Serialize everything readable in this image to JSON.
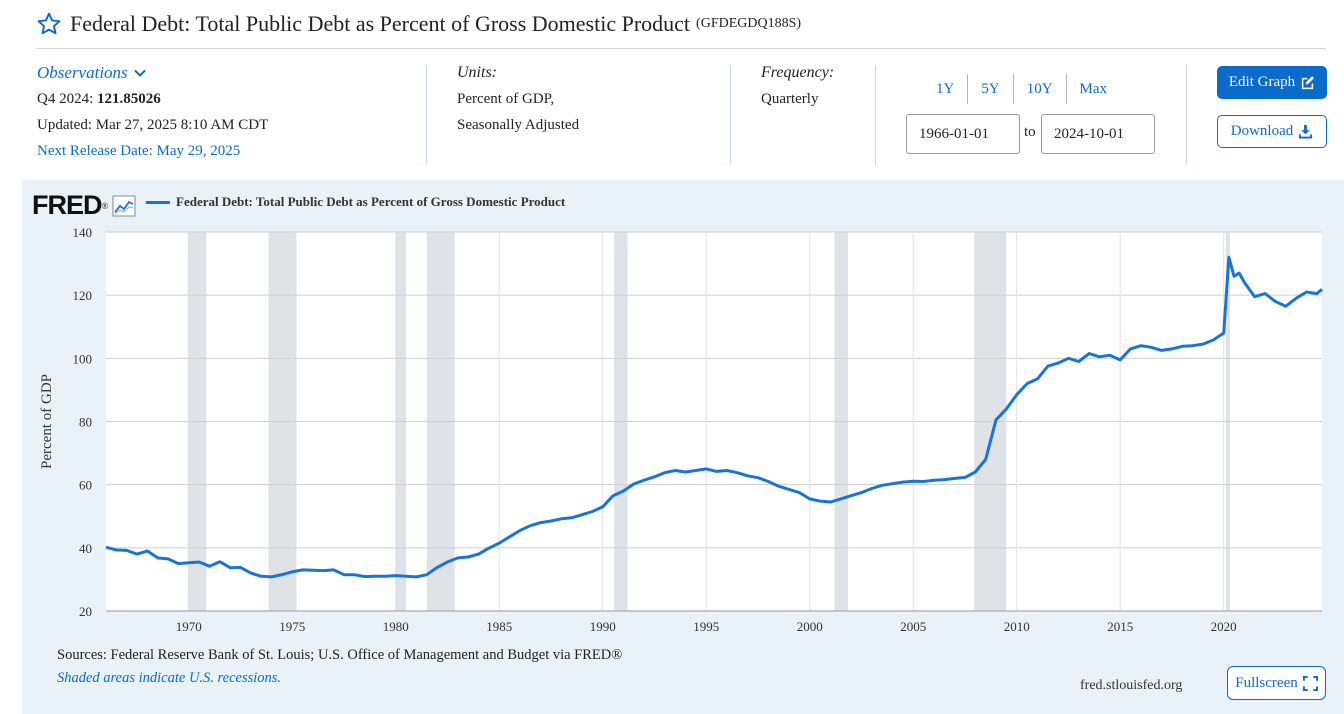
{
  "header": {
    "title": "Federal Debt: Total Public Debt as Percent of Gross Domestic Product",
    "series_id": "(GFDEGDQ188S)"
  },
  "observations": {
    "heading": "Observations",
    "period_label": "Q4 2024:",
    "value": "121.85026",
    "updated": "Updated: Mar 27, 2025 8:10 AM CDT",
    "next_release": "Next Release Date: May 29, 2025"
  },
  "units": {
    "heading": "Units:",
    "line1": "Percent of GDP,",
    "line2": "Seasonally Adjusted"
  },
  "frequency": {
    "heading": "Frequency:",
    "value": "Quarterly"
  },
  "range_buttons": [
    "1Y",
    "5Y",
    "10Y",
    "Max"
  ],
  "date_range": {
    "start": "1966-01-01",
    "to_label": "to",
    "end": "2024-10-01"
  },
  "actions": {
    "edit": "Edit Graph",
    "download": "Download",
    "fullscreen": "Fullscreen"
  },
  "chart_panel": {
    "logo": "FRED",
    "sources": "Sources: Federal Reserve Bank of St. Louis; U.S. Office of Management and Budget via FRED®",
    "shaded_note": "Shaded areas indicate U.S. recessions.",
    "url": "fred.stlouisfed.org"
  },
  "colors": {
    "accent": "#0b6bcb",
    "line": "#1a73d9",
    "panel": "#e9f2f9",
    "recession": "#dfe3e7"
  },
  "chart_data": {
    "type": "line",
    "legend": "Federal Debt: Total Public Debt as Percent of Gross Domestic Product",
    "ylabel": "Percent of GDP",
    "xlim": [
      1966.0,
      2024.75
    ],
    "ylim": [
      20,
      140
    ],
    "y_ticks": [
      20,
      40,
      60,
      80,
      100,
      120,
      140
    ],
    "x_ticks": [
      1970,
      1975,
      1980,
      1985,
      1990,
      1995,
      2000,
      2005,
      2010,
      2015,
      2020
    ],
    "grid": true,
    "recessions": [
      [
        1969.95,
        1970.85
      ],
      [
        1973.85,
        1975.2
      ],
      [
        1980.0,
        1980.5
      ],
      [
        1981.5,
        1982.85
      ],
      [
        1990.55,
        1991.2
      ],
      [
        2001.2,
        2001.85
      ],
      [
        2007.95,
        2009.5
      ],
      [
        2020.1,
        2020.3
      ]
    ],
    "series": [
      {
        "name": "Federal Debt: Total Public Debt as Percent of Gross Domestic Product",
        "x": [
          1966.0,
          1966.5,
          1967.0,
          1967.5,
          1968.0,
          1968.5,
          1969.0,
          1969.5,
          1970.0,
          1970.5,
          1971.0,
          1971.5,
          1972.0,
          1972.5,
          1973.0,
          1973.5,
          1974.0,
          1974.5,
          1975.0,
          1975.5,
          1976.0,
          1976.5,
          1977.0,
          1977.5,
          1978.0,
          1978.5,
          1979.0,
          1979.5,
          1980.0,
          1980.5,
          1981.0,
          1981.5,
          1982.0,
          1982.5,
          1983.0,
          1983.5,
          1984.0,
          1984.5,
          1985.0,
          1985.5,
          1986.0,
          1986.5,
          1987.0,
          1987.5,
          1988.0,
          1988.5,
          1989.0,
          1989.5,
          1990.0,
          1990.5,
          1991.0,
          1991.5,
          1992.0,
          1992.5,
          1993.0,
          1993.5,
          1994.0,
          1994.5,
          1995.0,
          1995.5,
          1996.0,
          1996.5,
          1997.0,
          1997.5,
          1998.0,
          1998.5,
          1999.0,
          1999.5,
          2000.0,
          2000.5,
          2001.0,
          2001.5,
          2002.0,
          2002.5,
          2003.0,
          2003.5,
          2004.0,
          2004.5,
          2005.0,
          2005.5,
          2006.0,
          2006.5,
          2007.0,
          2007.5,
          2008.0,
          2008.5,
          2009.0,
          2009.5,
          2010.0,
          2010.5,
          2011.0,
          2011.5,
          2012.0,
          2012.5,
          2013.0,
          2013.5,
          2014.0,
          2014.5,
          2015.0,
          2015.5,
          2016.0,
          2016.5,
          2017.0,
          2017.5,
          2018.0,
          2018.5,
          2019.0,
          2019.5,
          2020.0,
          2020.25,
          2020.5,
          2020.75,
          2021.0,
          2021.5,
          2022.0,
          2022.5,
          2023.0,
          2023.5,
          2024.0,
          2024.5,
          2024.75
        ],
        "values": [
          40.2,
          39.3,
          39.2,
          38.0,
          39.0,
          36.8,
          36.5,
          35.0,
          35.3,
          35.5,
          34.2,
          35.6,
          33.7,
          33.8,
          32.0,
          31.0,
          30.8,
          31.5,
          32.4,
          33.0,
          32.9,
          32.8,
          33.0,
          31.5,
          31.5,
          30.9,
          31.0,
          31.0,
          31.2,
          31.0,
          30.8,
          31.5,
          33.8,
          35.5,
          36.8,
          37.1,
          38.0,
          39.9,
          41.5,
          43.5,
          45.5,
          47.0,
          48.0,
          48.5,
          49.2,
          49.5,
          50.5,
          51.5,
          53.0,
          56.5,
          58.0,
          60.2,
          61.4,
          62.5,
          63.8,
          64.5,
          64.0,
          64.5,
          65.0,
          64.2,
          64.5,
          63.8,
          62.8,
          62.2,
          61.0,
          59.5,
          58.5,
          57.5,
          55.5,
          54.8,
          54.5,
          55.5,
          56.5,
          57.5,
          58.8,
          59.8,
          60.3,
          60.8,
          61.1,
          61.0,
          61.4,
          61.6,
          62.0,
          62.3,
          64.0,
          68.0,
          80.5,
          84.0,
          88.5,
          92.0,
          93.5,
          97.5,
          98.5,
          100.0,
          99.0,
          101.5,
          100.5,
          101.0,
          99.5,
          103.0,
          104.0,
          103.5,
          102.5,
          103.0,
          103.8,
          104.0,
          104.5,
          105.8,
          108.0,
          132.0,
          126.0,
          127.0,
          124.0,
          119.5,
          120.5,
          118.0,
          116.5,
          119.0,
          121.0,
          120.5,
          121.85
        ]
      }
    ]
  }
}
